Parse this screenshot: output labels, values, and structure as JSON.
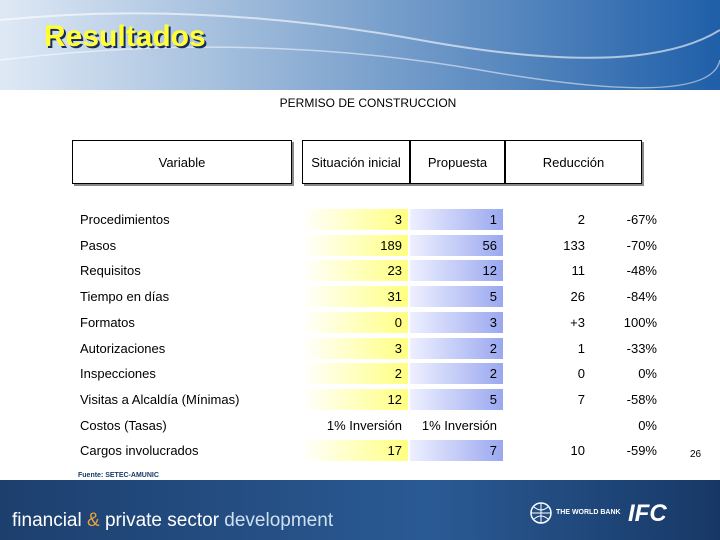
{
  "header": {
    "title": "Resultados"
  },
  "table": {
    "caption": "PERMISO DE CONSTRUCCION",
    "columns": {
      "variable": "Variable",
      "inicial": "Situación inicial",
      "propuesta": "Propuesta",
      "reduccion": "Reducción"
    },
    "rows": [
      {
        "variable": "Procedimientos",
        "inicial": "3",
        "propuesta": "1",
        "reduccion": "2",
        "porcentaje": "-67%"
      },
      {
        "variable": "Pasos",
        "inicial": "189",
        "propuesta": "56",
        "reduccion": "133",
        "porcentaje": "-70%"
      },
      {
        "variable": "Requisitos",
        "inicial": "23",
        "propuesta": "12",
        "reduccion": "11",
        "porcentaje": "-48%"
      },
      {
        "variable": "Tiempo en días",
        "inicial": "31",
        "propuesta": "5",
        "reduccion": "26",
        "porcentaje": "-84%"
      },
      {
        "variable": "Formatos",
        "inicial": "0",
        "propuesta": "3",
        "reduccion": "+3",
        "porcentaje": "100%"
      },
      {
        "variable": "Autorizaciones",
        "inicial": "3",
        "propuesta": "2",
        "reduccion": "1",
        "porcentaje": "-33%"
      },
      {
        "variable": "Inspecciones",
        "inicial": "2",
        "propuesta": "2",
        "reduccion": "0",
        "porcentaje": "0%"
      },
      {
        "variable": "Visitas a Alcaldía (Mínimas)",
        "inicial": "12",
        "propuesta": "5",
        "reduccion": "7",
        "porcentaje": "-58%"
      },
      {
        "variable": "Costos (Tasas)",
        "inicial": "1% Inversión",
        "propuesta": "1% Inversión",
        "porcentaje": "0%"
      },
      {
        "variable": "Cargos involucrados",
        "inicial": "17",
        "propuesta": "7",
        "reduccion": "10",
        "porcentaje": "-59%"
      }
    ],
    "source": "Fuente: SETEC-AMUNIC"
  },
  "page_number": "26",
  "footer": {
    "tagline_1": "financial",
    "tagline_amp": "&",
    "tagline_2": "private sector",
    "tagline_3": "development",
    "world_bank": "THE WORLD BANK",
    "ifc": "IFC"
  }
}
